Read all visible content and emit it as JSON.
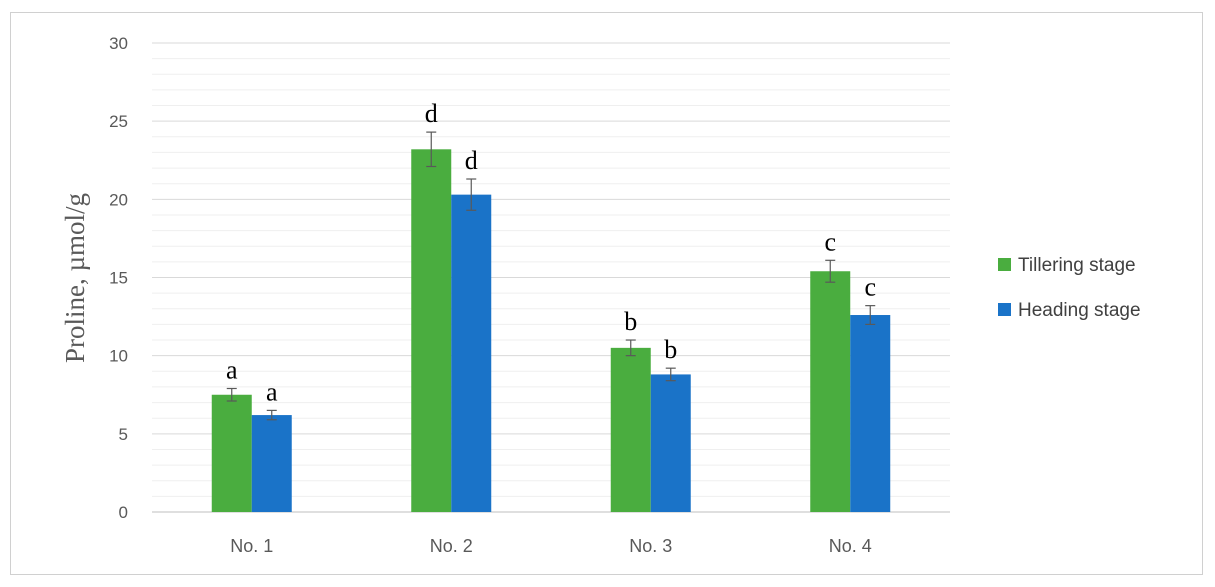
{
  "chart_data": {
    "type": "bar",
    "ylabel": "Proline, µmol/g",
    "xlabel": "",
    "ylim": [
      0,
      30
    ],
    "yticks": [
      0,
      5,
      10,
      15,
      20,
      25,
      30
    ],
    "grid": true,
    "legend_position": "right",
    "categories": [
      "No. 1",
      "No. 2",
      "No. 3",
      "No. 4"
    ],
    "series": [
      {
        "name": "Tillering stage",
        "color": "#4aad3f",
        "values": [
          7.5,
          23.2,
          10.5,
          15.4
        ],
        "errors": [
          0.4,
          1.1,
          0.5,
          0.7
        ],
        "labels": [
          "a",
          "d",
          "b",
          "c"
        ]
      },
      {
        "name": "Heading stage",
        "color": "#1a73c8",
        "values": [
          6.2,
          20.3,
          8.8,
          12.6
        ],
        "errors": [
          0.3,
          1.0,
          0.4,
          0.6
        ],
        "labels": [
          "a",
          "d",
          "b",
          "c"
        ]
      }
    ]
  }
}
